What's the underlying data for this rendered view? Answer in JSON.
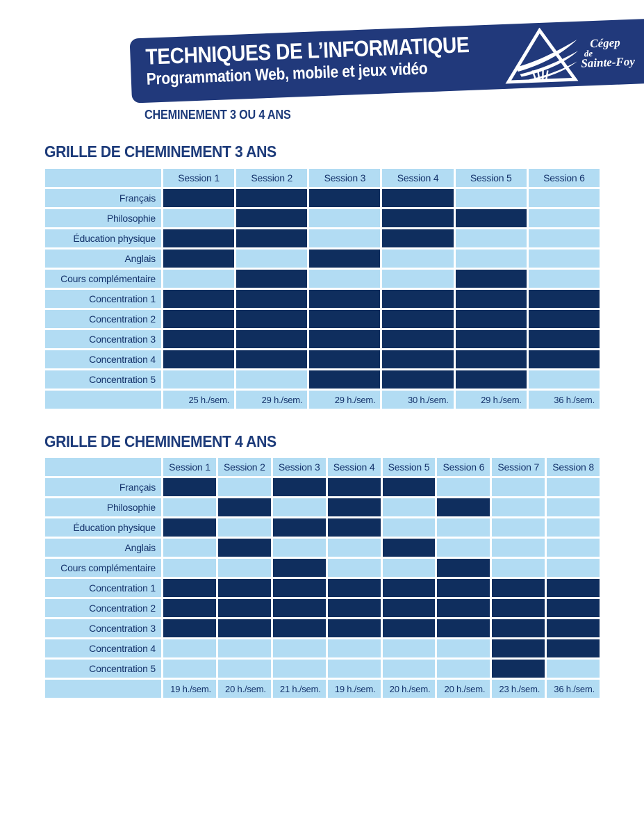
{
  "banner": {
    "title": "TECHNIQUES DE L’INFORMATIQUE",
    "subtitle": "Programmation Web, mobile et jeux vidéo",
    "logo_text": {
      "line1": "Cégep",
      "line2": "de",
      "line3": "Sainte-Foy"
    }
  },
  "subheader": "CHEMINEMENT 3 OU 4 ANS",
  "colors": {
    "banner_bg": "#21397b",
    "cell_dark": "#0f2e5e",
    "cell_light": "#b2dcf3",
    "heading_text": "#1d3b7a",
    "table_text": "#15336b"
  },
  "tables": [
    {
      "title": "GRILLE DE CHEMINEMENT 3 ANS",
      "columns": [
        "Session 1",
        "Session 2",
        "Session 3",
        "Session 4",
        "Session 5",
        "Session 6"
      ],
      "rows": [
        {
          "label": "Français",
          "cells": [
            1,
            1,
            1,
            1,
            0,
            0
          ]
        },
        {
          "label": "Philosophie",
          "cells": [
            0,
            1,
            0,
            1,
            1,
            0
          ]
        },
        {
          "label": "Éducation physique",
          "cells": [
            1,
            1,
            0,
            1,
            0,
            0
          ]
        },
        {
          "label": "Anglais",
          "cells": [
            1,
            0,
            1,
            0,
            0,
            0
          ]
        },
        {
          "label": "Cours complémentaire",
          "cells": [
            0,
            1,
            0,
            0,
            1,
            0
          ]
        },
        {
          "label": "Concentration 1",
          "cells": [
            1,
            1,
            1,
            1,
            1,
            1
          ]
        },
        {
          "label": "Concentration 2",
          "cells": [
            1,
            1,
            1,
            1,
            1,
            1
          ]
        },
        {
          "label": "Concentration 3",
          "cells": [
            1,
            1,
            1,
            1,
            1,
            1
          ]
        },
        {
          "label": "Concentration 4",
          "cells": [
            1,
            1,
            1,
            1,
            1,
            1
          ]
        },
        {
          "label": "Concentration 5",
          "cells": [
            0,
            0,
            1,
            1,
            1,
            0
          ]
        }
      ],
      "hours": [
        "25 h./sem.",
        "29 h./sem.",
        "29 h./sem.",
        "30 h./sem.",
        "29 h./sem.",
        "36 h./sem."
      ]
    },
    {
      "title": "GRILLE DE CHEMINEMENT 4 ANS",
      "columns": [
        "Session 1",
        "Session 2",
        "Session 3",
        "Session 4",
        "Session 5",
        "Session 6",
        "Session 7",
        "Session 8"
      ],
      "rows": [
        {
          "label": "Français",
          "cells": [
            1,
            0,
            1,
            1,
            1,
            0,
            0,
            0
          ]
        },
        {
          "label": "Philosophie",
          "cells": [
            0,
            1,
            0,
            1,
            0,
            1,
            0,
            0
          ]
        },
        {
          "label": "Éducation physique",
          "cells": [
            1,
            0,
            1,
            1,
            0,
            0,
            0,
            0
          ]
        },
        {
          "label": "Anglais",
          "cells": [
            0,
            1,
            0,
            0,
            1,
            0,
            0,
            0
          ]
        },
        {
          "label": "Cours complémentaire",
          "cells": [
            0,
            0,
            1,
            0,
            0,
            1,
            0,
            0
          ]
        },
        {
          "label": "Concentration 1",
          "cells": [
            1,
            1,
            1,
            1,
            1,
            1,
            1,
            1
          ]
        },
        {
          "label": "Concentration 2",
          "cells": [
            1,
            1,
            1,
            1,
            1,
            1,
            1,
            1
          ]
        },
        {
          "label": "Concentration 3",
          "cells": [
            1,
            1,
            1,
            1,
            1,
            1,
            1,
            1
          ]
        },
        {
          "label": "Concentration 4",
          "cells": [
            0,
            0,
            0,
            0,
            0,
            0,
            1,
            1
          ]
        },
        {
          "label": "Concentration 5",
          "cells": [
            0,
            0,
            0,
            0,
            0,
            0,
            1,
            0
          ]
        }
      ],
      "hours": [
        "19 h./sem.",
        "20 h./sem.",
        "21 h./sem.",
        "19 h./sem.",
        "20 h./sem.",
        "20 h./sem.",
        "23 h./sem.",
        "36 h./sem."
      ]
    }
  ]
}
